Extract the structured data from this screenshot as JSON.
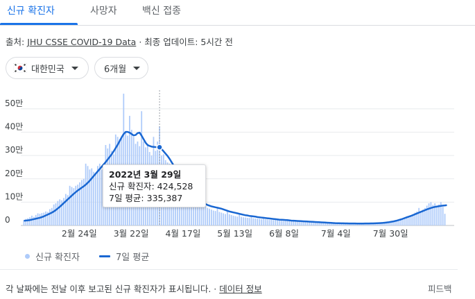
{
  "tabs": [
    {
      "label": "신규 확진자"
    },
    {
      "label": "사망자"
    },
    {
      "label": "백신 접종"
    }
  ],
  "source": {
    "prefix": "출처:",
    "link": "JHU CSSE COVID-19 Data",
    "updated": "· 최종 업데이트: 5시간 전"
  },
  "filters": {
    "region": "대한민국",
    "region_icon": "korea-flag-icon",
    "period": "6개월"
  },
  "colors": {
    "accent": "#1a73e8",
    "bar": "#aecbfa",
    "avg_line": "#1967d2"
  },
  "tooltip": {
    "date": "2022년 3월 29일",
    "cases": "신규 확진자: 424,528",
    "avg": "7일 평균: 335,387"
  },
  "legend": {
    "cases": "신규 확진자",
    "avg": "7일 평균"
  },
  "footer": {
    "note": "각 날짜에는 전날 이후 보고된 신규 확진자가 표시됩니다. ·",
    "link": "데이터 정보",
    "feedback": "피드백"
  },
  "chart_data": {
    "type": "bar",
    "y_ticks": [
      "0",
      "10만",
      "20만",
      "30만",
      "40만",
      "50만"
    ],
    "ylim": [
      0,
      580000
    ],
    "grid": true,
    "x_tick_labels": [
      "2월 24일",
      "3월 22일",
      "4월 17일",
      "5월 13일",
      "6월 8일",
      "7월 4일",
      "7월 30일"
    ],
    "highlighted": {
      "date": "2022년 3월 29일",
      "cases": 424528,
      "avg": 335387
    },
    "series": [
      {
        "name": "신규 확진자",
        "kind": "bar",
        "values": [
          22000,
          28000,
          31000,
          35000,
          42000,
          37000,
          45000,
          52000,
          50000,
          53000,
          55000,
          60000,
          58000,
          70000,
          75000,
          90000,
          95000,
          105000,
          112000,
          108000,
          118000,
          135000,
          130000,
          170000,
          165000,
          160000,
          170000,
          175000,
          185000,
          195000,
          200000,
          265000,
          255000,
          240000,
          245000,
          230000,
          225000,
          255000,
          265000,
          240000,
          235000,
          345000,
          330000,
          350000,
          320000,
          305000,
          390000,
          380000,
          370000,
          375000,
          565000,
          400000,
          385000,
          470000,
          410000,
          380000,
          350000,
          360000,
          340000,
          490000,
          360000,
          335000,
          350000,
          315000,
          300000,
          380000,
          320000,
          360000,
          425000,
          300000,
          305000,
          280000,
          270000,
          265000,
          235000,
          250000,
          195000,
          185000,
          170000,
          175000,
          210000,
          165000,
          155000,
          150000,
          130000,
          105000,
          110000,
          95000,
          100000,
          90000,
          130000,
          90000,
          75000,
          72000,
          68000,
          64000,
          62000,
          80000,
          58000,
          55000,
          52000,
          49000,
          61000,
          48000,
          45000,
          42000,
          40000,
          38000,
          50000,
          37000,
          35000,
          34000,
          33000,
          32000,
          42000,
          31000,
          30000,
          29000,
          28000,
          27500,
          35000,
          26000,
          25000,
          24000,
          24000,
          23000,
          30000,
          22000,
          21000,
          20500,
          20000,
          19500,
          26000,
          19000,
          18500,
          18000,
          17500,
          17000,
          22000,
          16500,
          16000,
          15500,
          15000,
          14500,
          19000,
          14000,
          13500,
          13000,
          12500,
          12000,
          15000,
          11500,
          11000,
          10500,
          10000,
          9500,
          12000,
          9000,
          9000,
          8800,
          8500,
          8000,
          10000,
          7800,
          7500,
          7600,
          7500,
          7400,
          9000,
          7300,
          7500,
          7600,
          7800,
          8000,
          9500,
          8200,
          8500,
          9000,
          9500,
          10000,
          12000,
          11000,
          12500,
          14000,
          16000,
          18000,
          22000,
          20000,
          23000,
          26000,
          30000,
          34000,
          40000,
          37000,
          42000,
          47000,
          55000,
          60000,
          75000,
          62000,
          68000,
          75000,
          85000,
          95000,
          100000,
          88000,
          95000,
          85000,
          90000,
          100000,
          80000,
          50000
        ],
        "color": "#aecbfa"
      },
      {
        "name": "7일 평균",
        "kind": "line",
        "values": [
          20000,
          21000,
          22000,
          23000,
          25000,
          27000,
          29000,
          31000,
          33000,
          36000,
          39000,
          43000,
          47000,
          51000,
          55000,
          60000,
          66000,
          73000,
          80000,
          88000,
          96000,
          104000,
          112000,
          120000,
          128000,
          136000,
          143000,
          150000,
          156000,
          162000,
          168000,
          175000,
          183000,
          192000,
          202000,
          212000,
          222000,
          232000,
          242000,
          252000,
          262000,
          272000,
          283000,
          294000,
          305000,
          318000,
          332000,
          346000,
          362000,
          378000,
          392000,
          401000,
          401000,
          398000,
          392000,
          386000,
          388000,
          396000,
          398000,
          385000,
          370000,
          355000,
          345000,
          341000,
          338000,
          337000,
          336000,
          335500,
          335387,
          328000,
          318000,
          308000,
          298000,
          286000,
          272000,
          258000,
          245000,
          232000,
          220000,
          208000,
          196000,
          184000,
          172000,
          160000,
          148000,
          137000,
          127000,
          118000,
          110000,
          103000,
          97000,
          92000,
          88000,
          85000,
          82000,
          80000,
          78000,
          76000,
          74000,
          72000,
          69000,
          66000,
          63000,
          60000,
          58000,
          56000,
          54000,
          52000,
          50000,
          48000,
          46000,
          44000,
          43000,
          41000,
          40000,
          39000,
          38000,
          36000,
          35000,
          34000,
          33000,
          32000,
          31000,
          30000,
          29000,
          28000,
          27000,
          26000,
          25000,
          24500,
          24000,
          23500,
          23000,
          22000,
          21000,
          20500,
          20000,
          19500,
          19000,
          18500,
          18000,
          17500,
          17000,
          16500,
          16000,
          15500,
          15000,
          14500,
          14000,
          13500,
          13000,
          12500,
          12000,
          11500,
          11000,
          10500,
          10000,
          9800,
          9600,
          9400,
          9200,
          9000,
          8800,
          8700,
          8600,
          8500,
          8400,
          8300,
          8300,
          8300,
          8300,
          8400,
          8500,
          8600,
          8800,
          9000,
          9300,
          9600,
          10000,
          10500,
          11000,
          12000,
          13000,
          14000,
          15500,
          17000,
          19000,
          21000,
          23500,
          26000,
          29000,
          32000,
          35000,
          38000,
          41000,
          44500,
          48000,
          51500,
          55000,
          58500,
          62000,
          65500,
          69000,
          72000,
          75000,
          77500,
          79500,
          81000,
          82500,
          84000,
          85000,
          86000,
          87000
        ],
        "color": "#1967d2"
      }
    ]
  }
}
